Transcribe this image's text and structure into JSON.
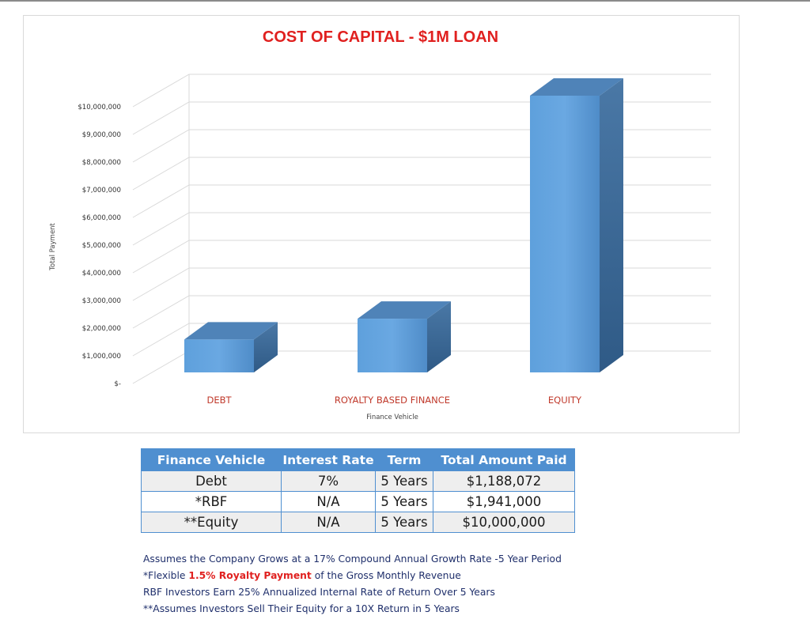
{
  "chart_data": {
    "type": "bar",
    "title": "COST OF CAPITAL - $1M LOAN",
    "xlabel": "Finance Vehicle",
    "ylabel": "Total Payment",
    "categories": [
      "DEBT",
      "ROYALTY BASED FINANCE",
      "EQUITY"
    ],
    "values": [
      1188072,
      1941000,
      10000000
    ],
    "ylim": [
      0,
      10000000
    ],
    "y_ticks": [
      0,
      1000000,
      2000000,
      3000000,
      4000000,
      5000000,
      6000000,
      7000000,
      8000000,
      9000000,
      10000000
    ],
    "y_tick_labels": [
      "$-",
      "$1,000,000",
      "$2,000,000",
      "$3,000,000",
      "$4,000,000",
      "$5,000,000",
      "$6,000,000",
      "$7,000,000",
      "$8,000,000",
      "$9,000,000",
      "$10,000,000"
    ],
    "grid": true,
    "three_d": true,
    "colors": {
      "bar_front": "#5b9bd5",
      "bar_side": "#3e6f9f",
      "bar_top": "#4f83b8",
      "title": "#e0201f",
      "category_label": "#c0392b",
      "grid": "#d9d9d9"
    }
  },
  "table": {
    "headers": [
      "Finance Vehicle",
      "Interest Rate",
      "Term",
      "Total Amount Paid"
    ],
    "rows": [
      [
        "Debt",
        "7%",
        "5 Years",
        "$1,188,072"
      ],
      [
        "*RBF",
        "N/A",
        "5 Years",
        "$1,941,000"
      ],
      [
        "**Equity",
        "N/A",
        "5 Years",
        "$10,000,000"
      ]
    ],
    "header_color": "#4f8fd0"
  },
  "notes": {
    "line1": "Assumes the Company Grows at a 17% Compound Annual Growth Rate -5 Year Period",
    "line2_pre": "*Flexible ",
    "line2_highlight": "1.5% Royalty Payment",
    "line2_post": " of the Gross Monthly Revenue",
    "line3": "RBF Investors Earn 25% Annualized Internal Rate of Return Over 5 Years",
    "line4": "**Assumes Investors Sell Their Equity for a 10X Return in 5 Years"
  }
}
